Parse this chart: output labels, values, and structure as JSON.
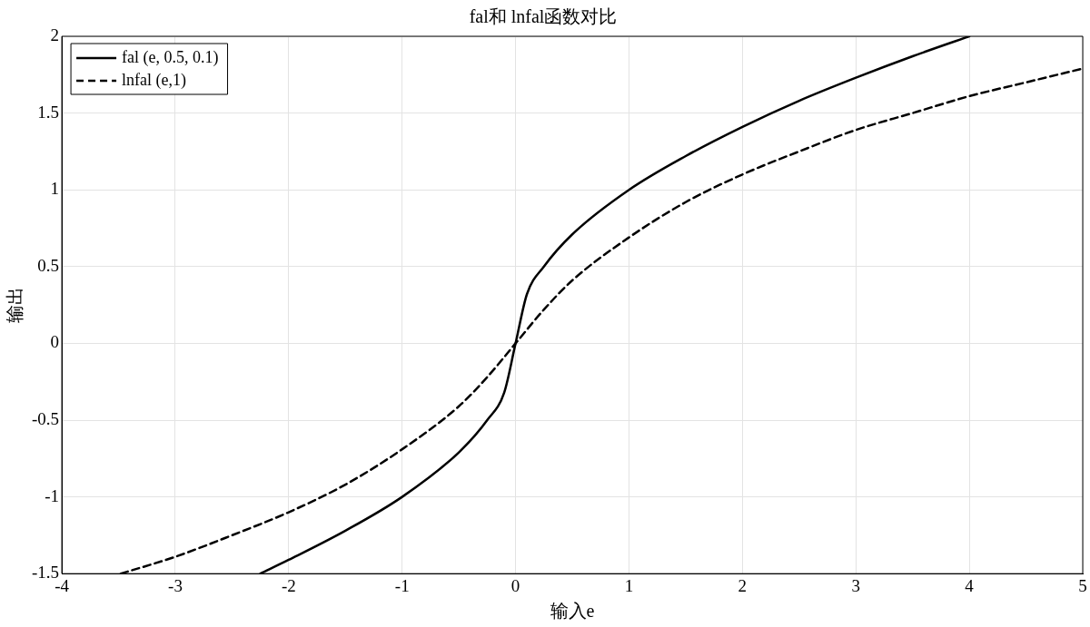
{
  "chart_data": {
    "type": "line",
    "title": "fal和 lnfal函数对比",
    "xlabel": "输入e",
    "ylabel": "输出",
    "xlim": [
      -4,
      5
    ],
    "xticks": [
      -4,
      -3,
      -2,
      -1,
      0,
      1,
      2,
      3,
      4,
      5
    ],
    "ylim": [
      -1.5,
      2
    ],
    "yticks": [
      -1.5,
      -1,
      -0.5,
      0,
      0.5,
      1,
      1.5,
      2
    ],
    "grid": true,
    "legend": "top left",
    "marker": "none",
    "series": [
      {
        "name": "fal (e, 0.5, 0.1)",
        "color": "#000000",
        "line_style": "solid",
        "x": [
          -2.25,
          -2,
          -1.5,
          -1,
          -0.5,
          -0.25,
          -0.1,
          0,
          0.1,
          0.25,
          0.5,
          1,
          1.5,
          2,
          2.5,
          3,
          3.5,
          4
        ],
        "values": [
          -1.5,
          -1.41,
          -1.22,
          -1,
          -0.71,
          -0.5,
          -0.32,
          0,
          0.32,
          0.5,
          0.71,
          1,
          1.22,
          1.41,
          1.58,
          1.73,
          1.87,
          2
        ]
      },
      {
        "name": "lnfal (e,1)",
        "color": "#000000",
        "line_style": "dashed",
        "x": [
          -3.48,
          -3,
          -2.5,
          -2,
          -1.5,
          -1,
          -0.5,
          -0.25,
          0,
          0.25,
          0.5,
          1,
          1.5,
          2,
          2.5,
          3,
          3.5,
          4,
          4.5,
          5
        ],
        "values": [
          -1.5,
          -1.39,
          -1.25,
          -1.1,
          -0.92,
          -0.69,
          -0.41,
          -0.22,
          0,
          0.22,
          0.41,
          0.69,
          0.92,
          1.1,
          1.25,
          1.39,
          1.5,
          1.61,
          1.7,
          1.79
        ]
      }
    ]
  }
}
